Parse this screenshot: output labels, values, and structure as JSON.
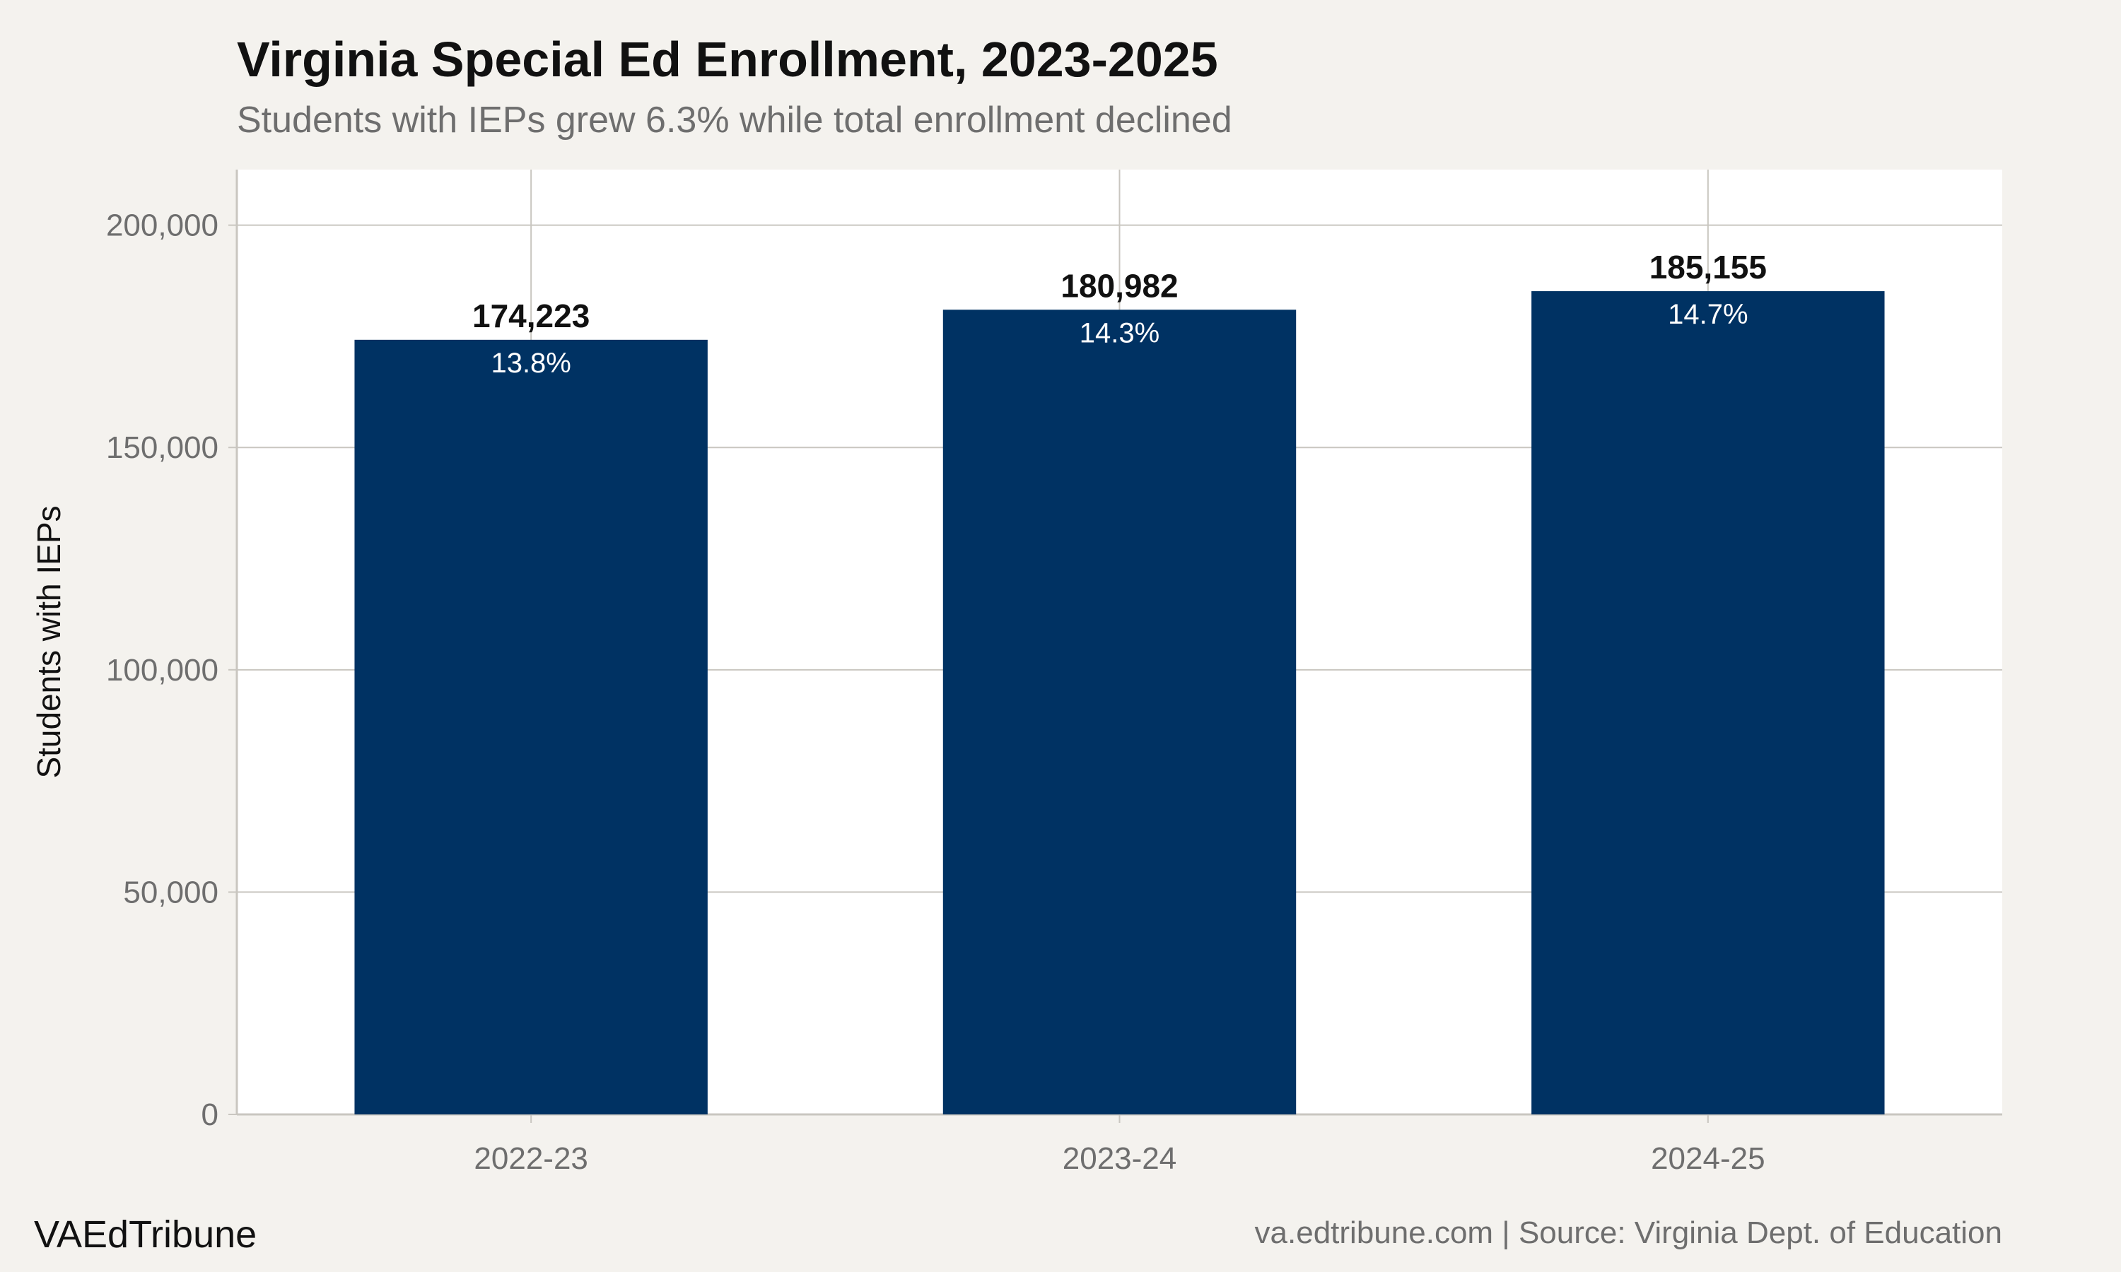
{
  "brand": "VAEdTribune",
  "source": "va.edtribune.com | Source: Virginia Dept. of Education",
  "colors": {
    "bar": "#003263",
    "panel": "#ffffff",
    "background": "#f4f2ee",
    "grid": "#c9c6c0"
  },
  "chart_data": {
    "type": "bar",
    "title": "Virginia Special Ed Enrollment, 2023-2025",
    "subtitle": "Students with IEPs grew 6.3% while total enrollment declined",
    "xlabel": "",
    "ylabel": "Students with IEPs",
    "categories": [
      "2022-23",
      "2023-24",
      "2024-25"
    ],
    "values": [
      174223,
      180982,
      185155
    ],
    "value_labels": [
      "174,223",
      "180,982",
      "185,155"
    ],
    "share_labels": [
      "13.8%",
      "14.3%",
      "14.7%"
    ],
    "ylim": [
      0,
      212500
    ],
    "yticks": [
      0,
      50000,
      100000,
      150000,
      200000
    ],
    "ytick_labels": [
      "0",
      "50,000",
      "100,000",
      "150,000",
      "200,000"
    ],
    "grid": true,
    "legend": "none"
  }
}
